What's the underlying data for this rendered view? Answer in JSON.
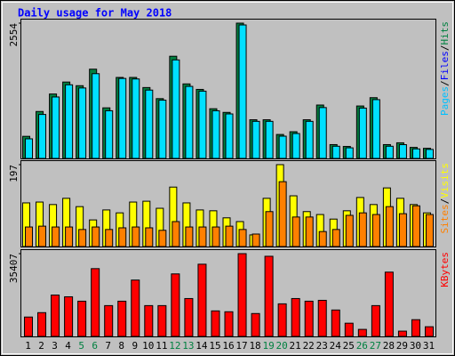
{
  "chart_data": [
    {
      "type": "bar",
      "title": "Daily usage for May 2018",
      "categories": [
        "1",
        "2",
        "3",
        "4",
        "5",
        "6",
        "7",
        "8",
        "9",
        "10",
        "11",
        "12",
        "13",
        "14",
        "15",
        "16",
        "17",
        "18",
        "19",
        "20",
        "21",
        "22",
        "23",
        "24",
        "25",
        "26",
        "27",
        "28",
        "29",
        "30",
        "31"
      ],
      "category_colors": [
        "#000000",
        "#000000",
        "#000000",
        "#000000",
        "#008040",
        "#008040",
        "#000000",
        "#000000",
        "#000000",
        "#000000",
        "#000000",
        "#008040",
        "#008040",
        "#000000",
        "#000000",
        "#000000",
        "#000000",
        "#000000",
        "#008040",
        "#008040",
        "#000000",
        "#000000",
        "#000000",
        "#000000",
        "#000000",
        "#008040",
        "#008040",
        "#000000",
        "#000000",
        "#000000",
        "#000000"
      ],
      "ylim": [
        0,
        2554
      ],
      "yticks": [
        2554
      ],
      "axis_label_parts": [
        {
          "text": "Pages",
          "color": "#00c0ff"
        },
        {
          "text": "/",
          "color": "#000000"
        },
        {
          "text": "Files",
          "color": "#0000ff"
        },
        {
          "text": "/",
          "color": "#000000"
        },
        {
          "text": "Hits",
          "color": "#008040"
        }
      ],
      "series": [
        {
          "color": "#008040",
          "values": [
            417,
            886,
            1216,
            1442,
            1373,
            1685,
            955,
            1529,
            1529,
            1338,
            1129,
            1929,
            1407,
            1303,
            938,
            869,
            2554,
            730,
            730,
            452,
            504,
            730,
            1008,
            261,
            226,
            990,
            1147,
            261,
            295,
            208,
            191
          ]
        },
        {
          "color": "#00e0ff",
          "values": [
            370,
            830,
            1160,
            1390,
            1330,
            1600,
            900,
            1510,
            1500,
            1290,
            1100,
            1860,
            1360,
            1270,
            900,
            840,
            2520,
            700,
            700,
            420,
            470,
            700,
            960,
            230,
            200,
            950,
            1110,
            230,
            260,
            180,
            170
          ]
        }
      ]
    },
    {
      "type": "bar",
      "ylim": [
        0,
        197
      ],
      "yticks": [
        197
      ],
      "axis_label_parts": [
        {
          "text": "Sites",
          "color": "#ff8000"
        },
        {
          "text": "/",
          "color": "#000000"
        },
        {
          "text": "Visits",
          "color": "#ffff00"
        }
      ],
      "series": [
        {
          "color": "#ffff00",
          "values": [
            105,
            107,
            101,
            116,
            96,
            64,
            88,
            81,
            107,
            109,
            92,
            143,
            105,
            88,
            86,
            69,
            60,
            28,
            116,
            197,
            122,
            84,
            77,
            66,
            86,
            118,
            101,
            141,
            116,
            101,
            81
          ]
        },
        {
          "color": "#ff8000",
          "values": [
            47,
            49,
            47,
            47,
            41,
            47,
            41,
            45,
            47,
            45,
            39,
            60,
            47,
            47,
            47,
            49,
            41,
            30,
            84,
            156,
            71,
            71,
            36,
            41,
            75,
            81,
            77,
            96,
            79,
            98,
            77
          ]
        }
      ]
    },
    {
      "type": "bar",
      "ylim": [
        0,
        35407
      ],
      "yticks": [
        35407
      ],
      "axis_label_parts": [
        {
          "text": "KBytes",
          "color": "#ff0000"
        }
      ],
      "series": [
        {
          "color": "#ff0000",
          "values": [
            8287,
            10170,
            17700,
            16950,
            15070,
            29000,
            13180,
            15070,
            24110,
            13180,
            13180,
            26740,
            16200,
            30890,
            10920,
            10550,
            35407,
            9790,
            34280,
            13940,
            16200,
            15070,
            15440,
            11300,
            5650,
            3010,
            13180,
            27500,
            2260,
            7160,
            4140
          ]
        }
      ]
    }
  ]
}
